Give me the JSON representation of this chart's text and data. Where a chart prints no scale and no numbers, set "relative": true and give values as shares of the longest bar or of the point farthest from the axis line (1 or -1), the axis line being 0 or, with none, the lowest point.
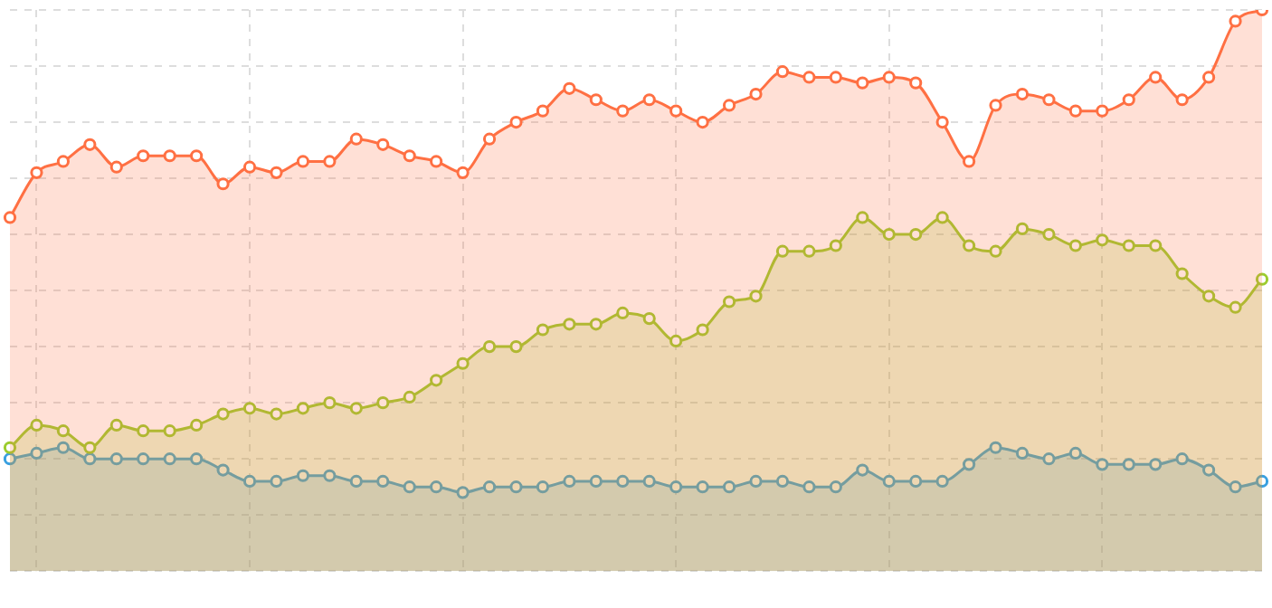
{
  "chart_data": {
    "type": "area",
    "relative": true,
    "grid": true,
    "legend": false,
    "marker": "circle",
    "line_style": "solid",
    "categories": [
      null,
      null,
      null,
      null,
      null,
      null,
      null,
      null,
      null,
      null,
      null,
      null,
      null,
      null,
      null,
      null,
      null,
      null,
      null,
      null,
      null,
      null,
      null,
      null,
      null,
      null,
      null,
      null,
      null,
      null,
      null,
      null,
      null,
      null,
      null,
      null,
      null,
      null,
      null,
      null,
      null,
      null,
      null,
      null,
      null,
      null,
      null,
      null
    ],
    "series": [
      {
        "color": "#ff7043",
        "values": [
          0.63,
          0.71,
          0.73,
          0.76,
          0.72,
          0.74,
          0.74,
          0.74,
          0.69,
          0.72,
          0.71,
          0.73,
          0.73,
          0.77,
          0.76,
          0.74,
          0.73,
          0.71,
          0.77,
          0.8,
          0.82,
          0.86,
          0.84,
          0.82,
          0.84,
          0.82,
          0.8,
          0.83,
          0.85,
          0.89,
          0.88,
          0.88,
          0.87,
          0.88,
          0.87,
          0.8,
          0.73,
          0.83,
          0.85,
          0.84,
          0.82,
          0.82,
          0.84,
          0.88,
          0.84,
          0.88,
          0.98,
          1
        ]
      },
      {
        "color": "#9ccc2e",
        "values": [
          0.22,
          0.26,
          0.25,
          0.22,
          0.26,
          0.25,
          0.25,
          0.26,
          0.28,
          0.29,
          0.28,
          0.29,
          0.3,
          0.29,
          0.3,
          0.31,
          0.34,
          0.37,
          0.4,
          0.4,
          0.43,
          0.44,
          0.44,
          0.46,
          0.45,
          0.41,
          0.43,
          0.48,
          0.49,
          0.57,
          0.57,
          0.58,
          0.63,
          0.6,
          0.6,
          0.63,
          0.58,
          0.57,
          0.61,
          0.6,
          0.58,
          0.59,
          0.58,
          0.58,
          0.53,
          0.49,
          0.47,
          0.52
        ]
      },
      {
        "color": "#3aa0e0",
        "values": [
          0.2,
          0.21,
          0.22,
          0.2,
          0.2,
          0.2,
          0.2,
          0.2,
          0.18,
          0.16,
          0.16,
          0.17,
          0.17,
          0.16,
          0.16,
          0.15,
          0.15,
          0.14,
          0.15,
          0.15,
          0.15,
          0.16,
          0.16,
          0.16,
          0.16,
          0.15,
          0.15,
          0.15,
          0.16,
          0.16,
          0.15,
          0.15,
          0.18,
          0.16,
          0.16,
          0.16,
          0.19,
          0.22,
          0.21,
          0.2,
          0.21,
          0.19,
          0.19,
          0.19,
          0.2,
          0.18,
          0.15,
          0.16
        ]
      }
    ]
  }
}
